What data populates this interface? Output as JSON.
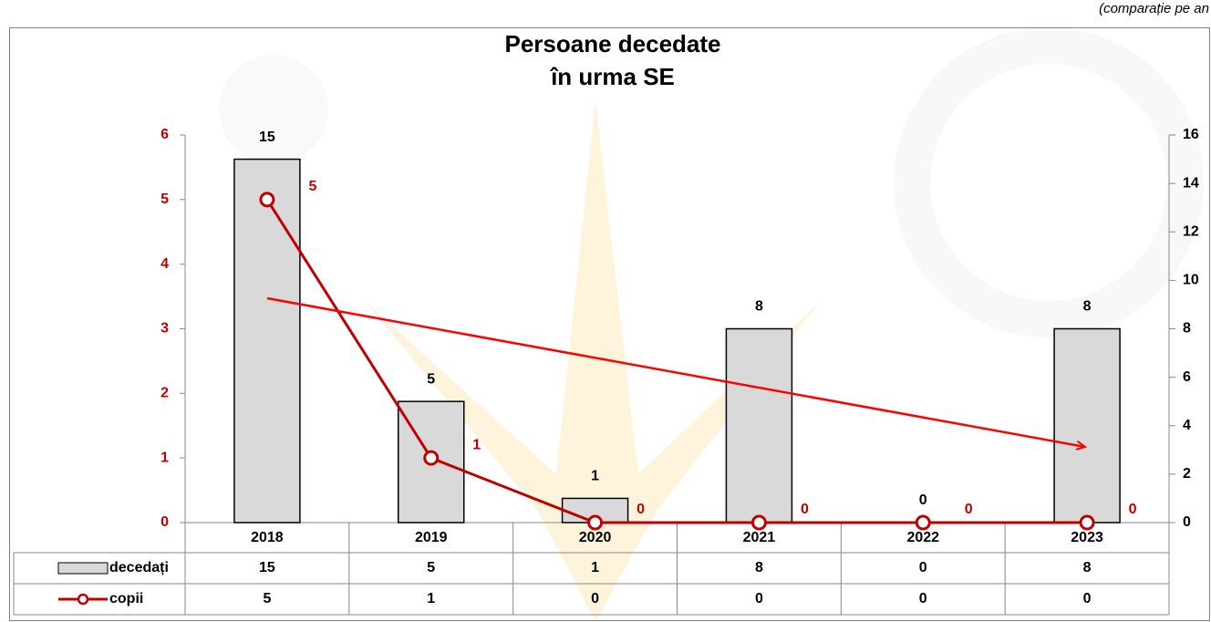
{
  "chart_data": {
    "type": "bar-line",
    "title": [
      "Persoane decedate",
      "în urma SE"
    ],
    "subtitle": "(comparație pe an",
    "categories": [
      "2018",
      "2019",
      "2020",
      "2021",
      "2022",
      "2023"
    ],
    "series": [
      {
        "name": "decedați",
        "type": "bar",
        "color": "#d9d9d9",
        "axis": "y2",
        "values": [
          15,
          5,
          1,
          8,
          0,
          8
        ]
      },
      {
        "name": "copii",
        "type": "line",
        "color": "#c00000",
        "axis": "y",
        "values": [
          5,
          1,
          0,
          0,
          0,
          0
        ]
      }
    ],
    "ylim": [
      0,
      6
    ],
    "yticks": [
      0,
      1,
      2,
      3,
      4,
      5,
      6
    ],
    "y2lim": [
      0,
      16
    ],
    "y2ticks": [
      0,
      2,
      4,
      6,
      8,
      10,
      12,
      14,
      16
    ],
    "grid": false
  }
}
